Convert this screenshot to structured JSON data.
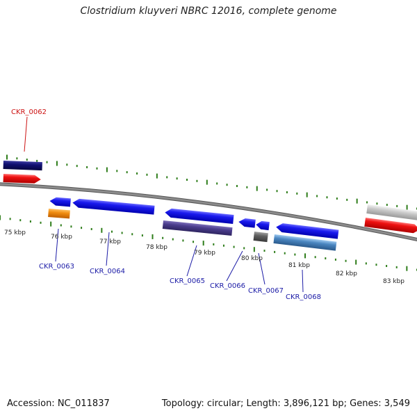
{
  "title": "Clostridium kluyveri NBRC 12016, complete genome",
  "footer": {
    "accession": "Accession: NC_011837",
    "topology": "Topology: circular; Length: 3,896,121 bp; Genes: 3,549"
  },
  "colors": {
    "background": "#ffffff",
    "backbone": "#8c8c8c",
    "tick": "#2e7d1a",
    "label_blue": "#1a1aa6",
    "label_red": "#cc1111"
  },
  "scale": {
    "unit": "kbp",
    "labels": [
      "75 kbp",
      "76 kbp",
      "77 kbp",
      "78 kbp",
      "79 kbp",
      "80 kbp",
      "81 kbp",
      "82 kbp",
      "83 kbp"
    ]
  },
  "genes": [
    {
      "label": "CKR_0062",
      "color": "red",
      "strand": "forward"
    },
    {
      "label": "CKR_0063",
      "color": "blue",
      "strand": "reverse"
    },
    {
      "label": "CKR_0064",
      "color": "blue",
      "strand": "reverse"
    },
    {
      "label": "CKR_0065",
      "color": "blue",
      "strand": "reverse"
    },
    {
      "label": "CKR_0066",
      "color": "blue",
      "strand": "reverse"
    },
    {
      "label": "CKR_0067",
      "color": "blue",
      "strand": "reverse"
    },
    {
      "label": "CKR_0068",
      "color": "blue",
      "strand": "reverse"
    }
  ],
  "legend_colors": {
    "cds": "#1010e6",
    "gene_forward": "#ee1111",
    "navy_feature": "#101070",
    "orange_feature": "#f08c10",
    "purple_feature": "#4a3c8c",
    "gray_feature": "#606060",
    "steelblue_feature": "#4a86c0",
    "lightgray_feature": "#c8c8c8"
  }
}
